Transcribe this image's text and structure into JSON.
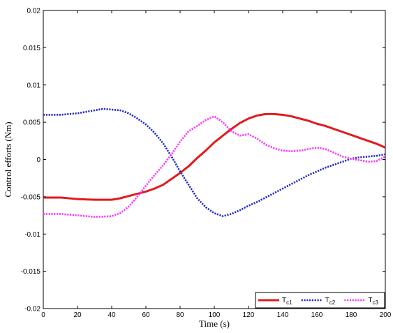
{
  "chart_data": {
    "type": "line",
    "title": "",
    "xlabel": "Time (s)",
    "ylabel": "Control efforts (Nm)",
    "xlim": [
      0,
      200
    ],
    "ylim": [
      -0.02,
      0.02
    ],
    "xticks": [
      0,
      20,
      40,
      60,
      80,
      100,
      120,
      140,
      160,
      180,
      200
    ],
    "xtick_labels": [
      "0",
      "20",
      "40",
      "60",
      "80",
      "100",
      "120",
      "140",
      "160",
      "180",
      "200"
    ],
    "yticks": [
      -0.02,
      -0.015,
      -0.01,
      -0.005,
      0,
      0.005,
      0.01,
      0.015,
      0.02
    ],
    "ytick_labels": [
      "-0.02",
      "-0.015",
      "-0.01",
      "-0.005",
      "0",
      "0.005",
      "0.01",
      "0.015",
      "0.02"
    ],
    "grid": false,
    "legend_position": "bottom-right",
    "series": [
      {
        "name": "Tc1",
        "legend_main": "T",
        "legend_sub": "c1",
        "color": "#e31a1c",
        "style": "solid",
        "x": [
          0,
          10,
          20,
          30,
          40,
          45,
          50,
          55,
          60,
          65,
          70,
          75,
          80,
          85,
          90,
          95,
          100,
          105,
          110,
          115,
          120,
          125,
          130,
          135,
          140,
          145,
          150,
          155,
          160,
          165,
          170,
          175,
          180,
          185,
          190,
          195,
          200
        ],
        "y": [
          -0.0051,
          -0.0051,
          -0.0053,
          -0.0054,
          -0.0054,
          -0.0052,
          -0.0049,
          -0.0046,
          -0.0043,
          -0.0039,
          -0.0034,
          -0.0026,
          -0.0018,
          -0.0009,
          0.0002,
          0.0012,
          0.0023,
          0.0032,
          0.0041,
          0.0049,
          0.0055,
          0.0059,
          0.0061,
          0.0061,
          0.006,
          0.0058,
          0.0055,
          0.0052,
          0.0048,
          0.0045,
          0.0041,
          0.0037,
          0.0033,
          0.0029,
          0.0025,
          0.0021,
          0.0016
        ]
      },
      {
        "name": "Tc2",
        "legend_main": "T",
        "legend_sub": "c2",
        "color": "#1f2bd1",
        "style": "dotted",
        "x": [
          0,
          10,
          20,
          30,
          35,
          40,
          45,
          50,
          55,
          60,
          65,
          70,
          75,
          80,
          85,
          90,
          95,
          100,
          105,
          110,
          115,
          120,
          125,
          130,
          135,
          140,
          145,
          150,
          155,
          160,
          165,
          170,
          175,
          180,
          185,
          190,
          195,
          200
        ],
        "y": [
          0.006,
          0.006,
          0.0062,
          0.0066,
          0.0068,
          0.0067,
          0.0066,
          0.0062,
          0.0055,
          0.0047,
          0.0036,
          0.0022,
          0.0004,
          -0.0016,
          -0.0034,
          -0.0052,
          -0.0064,
          -0.0072,
          -0.0076,
          -0.0073,
          -0.0068,
          -0.0062,
          -0.0057,
          -0.0051,
          -0.0045,
          -0.0039,
          -0.0033,
          -0.0027,
          -0.0021,
          -0.0016,
          -0.0011,
          -0.0007,
          -0.0003,
          0.0001,
          0.0003,
          0.0004,
          0.0005,
          0.0007
        ]
      },
      {
        "name": "Tc3",
        "legend_main": "T",
        "legend_sub": "c3",
        "color": "#ff33ff",
        "style": "dotted",
        "x": [
          0,
          10,
          20,
          30,
          40,
          45,
          50,
          55,
          60,
          65,
          70,
          75,
          80,
          85,
          90,
          95,
          100,
          105,
          110,
          115,
          120,
          125,
          130,
          135,
          140,
          145,
          150,
          155,
          160,
          165,
          170,
          175,
          180,
          185,
          190,
          195,
          200
        ],
        "y": [
          -0.0073,
          -0.0073,
          -0.0075,
          -0.0077,
          -0.0076,
          -0.0072,
          -0.0063,
          -0.005,
          -0.0035,
          -0.0021,
          -0.0008,
          0.0007,
          0.0024,
          0.0038,
          0.0045,
          0.0053,
          0.0058,
          0.005,
          0.0038,
          0.0032,
          0.0034,
          0.0028,
          0.002,
          0.0015,
          0.0012,
          0.0011,
          0.0012,
          0.0014,
          0.0016,
          0.0014,
          0.0009,
          0.0004,
          0.0001,
          -0.0001,
          -0.0003,
          -0.0002,
          0.0004
        ]
      }
    ]
  }
}
